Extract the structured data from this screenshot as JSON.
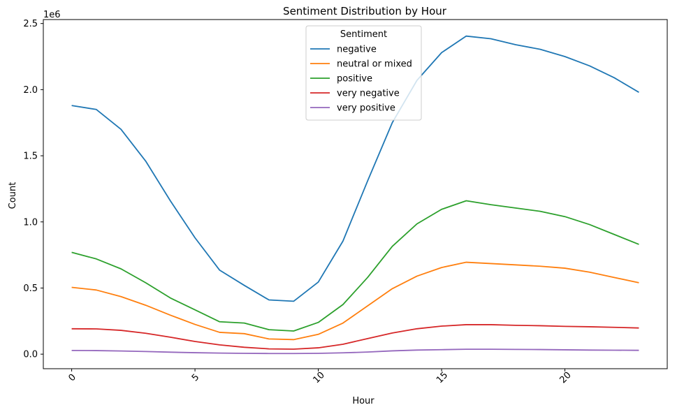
{
  "chart_data": {
    "type": "line",
    "title": "Sentiment Distribution by Hour",
    "xlabel": "Hour",
    "ylabel": "Count",
    "y_offset_label": "1e6",
    "x": [
      0,
      1,
      2,
      3,
      4,
      5,
      6,
      7,
      8,
      9,
      10,
      11,
      12,
      13,
      14,
      15,
      16,
      17,
      18,
      19,
      20,
      21,
      22,
      23
    ],
    "xlim": [
      -1.15,
      24.15
    ],
    "ylim": [
      -110000,
      2530000
    ],
    "x_ticks": [
      0,
      5,
      10,
      15,
      20
    ],
    "x_tick_labels": [
      "0",
      "5",
      "10",
      "15",
      "20"
    ],
    "y_ticks": [
      0,
      500000,
      1000000,
      1500000,
      2000000,
      2500000
    ],
    "y_tick_labels": [
      "0.0",
      "0.5",
      "1.0",
      "1.5",
      "2.0",
      "2.5"
    ],
    "grid": false,
    "legend": {
      "title": "Sentiment",
      "position": "top-center"
    },
    "series": [
      {
        "name": "negative",
        "color": "#1f77b4",
        "values": [
          1880000,
          1850000,
          1700000,
          1460000,
          1160000,
          880000,
          635000,
          520000,
          410000,
          400000,
          545000,
          855000,
          1310000,
          1750000,
          2070000,
          2280000,
          2405000,
          2385000,
          2340000,
          2305000,
          2250000,
          2180000,
          2090000,
          1980000
        ]
      },
      {
        "name": "neutral or mixed",
        "color": "#ff7f0e",
        "values": [
          505000,
          485000,
          435000,
          370000,
          295000,
          225000,
          165000,
          155000,
          115000,
          110000,
          150000,
          235000,
          365000,
          495000,
          590000,
          655000,
          695000,
          685000,
          675000,
          665000,
          650000,
          620000,
          580000,
          540000
        ]
      },
      {
        "name": "positive",
        "color": "#2ca02c",
        "values": [
          770000,
          720000,
          645000,
          540000,
          425000,
          335000,
          245000,
          235000,
          185000,
          175000,
          240000,
          375000,
          580000,
          815000,
          985000,
          1095000,
          1160000,
          1130000,
          1105000,
          1080000,
          1040000,
          980000,
          905000,
          830000
        ]
      },
      {
        "name": "very negative",
        "color": "#d62728",
        "values": [
          192000,
          191000,
          180000,
          158000,
          128000,
          96000,
          70000,
          52000,
          40000,
          38000,
          48000,
          75000,
          118000,
          160000,
          192000,
          212000,
          223000,
          223000,
          218000,
          215000,
          210000,
          207000,
          203000,
          198000
        ]
      },
      {
        "name": "very positive",
        "color": "#9467bd",
        "values": [
          28000,
          27000,
          24000,
          20000,
          15000,
          11000,
          8000,
          6000,
          5000,
          5000,
          6000,
          10000,
          16000,
          25000,
          31000,
          34000,
          37000,
          37000,
          36000,
          35000,
          33000,
          31000,
          30000,
          29000
        ]
      }
    ]
  }
}
